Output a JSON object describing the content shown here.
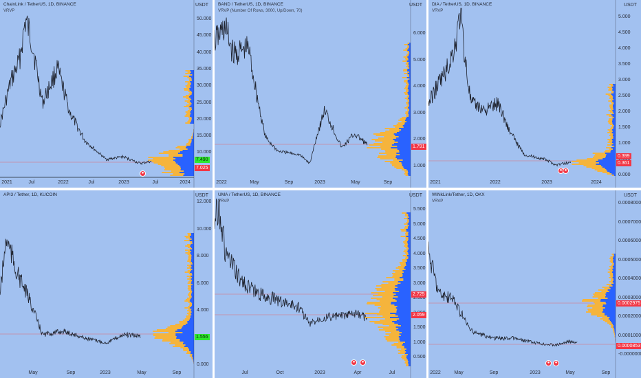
{
  "colors": {
    "pane_bg": "#a2c1f0",
    "price_line": "#1e222d",
    "vp_up": "#f5b43c",
    "vp_down": "#2962ff",
    "label_red": "#f23645",
    "label_green": "#2ee82e",
    "hline": "#ef5350"
  },
  "panes": [
    {
      "title": "ChainLink / TetherUS, 1D, BINANCE",
      "subtitle": "VRVP",
      "axis_unit": "USDT",
      "y_ticks": [
        "50.000",
        "45.000",
        "40.000",
        "35.000",
        "30.000",
        "25.000",
        "20.000",
        "15.000",
        "10.000"
      ],
      "x_ticks": [
        "2021",
        "Jul",
        "2022",
        "Jul",
        "2023",
        "Jul",
        "2024"
      ],
      "price_labels": [
        {
          "text": "7.490",
          "color": "green"
        },
        {
          "text": "7.025",
          "color": "red"
        }
      ]
    },
    {
      "title": "BAND / TetherUS, 1D, BINANCE",
      "subtitle": "VRVP (Number Of Rows, 3000, Up/Down, 70)",
      "axis_unit": "USDT",
      "y_ticks": [
        "6.000",
        "5.000",
        "4.000",
        "3.000",
        "2.000",
        "1.000"
      ],
      "x_ticks": [
        "2022",
        "May",
        "Sep",
        "2023",
        "May",
        "Sep"
      ],
      "price_labels": [
        {
          "text": "1.791",
          "color": "red"
        }
      ]
    },
    {
      "title": "DIA / TetherUS, 1D, BINANCE",
      "subtitle": "VRVP",
      "axis_unit": "USDT",
      "y_ticks": [
        "5.000",
        "4.500",
        "4.000",
        "3.500",
        "3.000",
        "2.500",
        "2.000",
        "1.500",
        "1.000",
        "0.500",
        "0.000"
      ],
      "x_ticks": [
        "2021",
        "2022",
        "2023",
        "2024"
      ],
      "price_labels": [
        {
          "text": "0.399",
          "color": "red"
        },
        {
          "text": "0.361",
          "color": "red"
        }
      ]
    },
    {
      "title": "API3 / Tether, 1D, KUCOIN",
      "subtitle": "",
      "axis_unit": "USDT",
      "y_ticks": [
        "12.000",
        "10.000",
        "8.000",
        "6.000",
        "4.000",
        "2.000",
        "0.000"
      ],
      "x_ticks": [
        "May",
        "Sep",
        "2023",
        "May",
        "Sep"
      ],
      "price_labels": [
        {
          "text": "1.556",
          "color": "green"
        }
      ]
    },
    {
      "title": "UMA / TetherUS, 1D, BINANCE",
      "subtitle": "VRVP",
      "axis_unit": "USDT",
      "y_ticks": [
        "5.500",
        "5.000",
        "4.500",
        "4.000",
        "3.500",
        "3.000",
        "2.500",
        "2.000",
        "1.500",
        "1.000",
        "0.500"
      ],
      "x_ticks": [
        "Jul",
        "Oct",
        "2023",
        "Apr",
        "Jul"
      ],
      "price_labels": [
        {
          "text": "2.725",
          "color": "red"
        },
        {
          "text": "2.059",
          "color": "red"
        }
      ]
    },
    {
      "title": "WINkLink/Tether, 1D, OKX",
      "subtitle": "VRVP",
      "axis_unit": "USDT",
      "y_ticks": [
        "0.0008000",
        "0.0007000",
        "0.0006000",
        "0.0005000",
        "0.0004000",
        "0.0003000",
        "0.0002000",
        "0.0001000",
        "-0.0000000"
      ],
      "x_ticks": [
        "2022",
        "May",
        "Sep",
        "2023",
        "May",
        "Sep"
      ],
      "price_labels": [
        {
          "text": "0.0002975",
          "color": "red"
        },
        {
          "text": "0.0000853",
          "color": "red"
        }
      ]
    }
  ]
}
